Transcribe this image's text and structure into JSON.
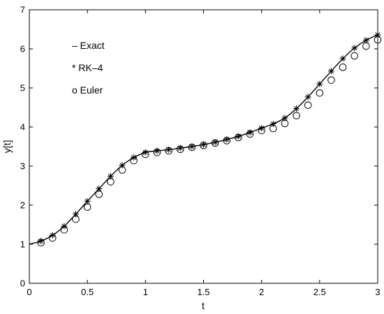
{
  "chart_data": {
    "type": "line",
    "title": "",
    "xlabel": "t",
    "ylabel": "y[t]",
    "xlim": [
      0,
      3
    ],
    "ylim": [
      0,
      7
    ],
    "xticks": [
      0,
      0.5,
      1,
      1.5,
      2,
      2.5,
      3
    ],
    "xtick_labels": [
      "0",
      "0.5",
      "1",
      "1.5",
      "2",
      "2.5",
      "3"
    ],
    "yticks": [
      0,
      1,
      2,
      3,
      4,
      5,
      6,
      7
    ],
    "ytick_labels": [
      "0",
      "1",
      "2",
      "3",
      "4",
      "5",
      "6",
      "7"
    ],
    "grid": false,
    "legend_position": "top-left",
    "legend_entries": [
      "– Exact",
      "* RK–4",
      "o Euler"
    ],
    "series": [
      {
        "name": "Exact",
        "style": "line",
        "color": "#000000",
        "x": [
          0,
          0.1,
          0.2,
          0.3,
          0.4,
          0.5,
          0.6,
          0.7,
          0.8,
          0.9,
          1.0,
          1.1,
          1.2,
          1.3,
          1.4,
          1.5,
          1.6,
          1.7,
          1.8,
          1.9,
          2.0,
          2.1,
          2.2,
          2.3,
          2.4,
          2.5,
          2.6,
          2.7,
          2.8,
          2.9,
          3.0
        ],
        "y": [
          1.0,
          1.08,
          1.23,
          1.46,
          1.77,
          2.1,
          2.42,
          2.74,
          3.02,
          3.22,
          3.35,
          3.39,
          3.42,
          3.46,
          3.5,
          3.55,
          3.61,
          3.68,
          3.76,
          3.86,
          3.97,
          4.08,
          4.23,
          4.47,
          4.77,
          5.1,
          5.43,
          5.75,
          6.02,
          6.22,
          6.36
        ]
      },
      {
        "name": "RK-4",
        "style": "markers",
        "marker": "*",
        "color": "#000000",
        "x": [
          0.1,
          0.2,
          0.3,
          0.4,
          0.5,
          0.6,
          0.7,
          0.8,
          0.9,
          1.0,
          1.1,
          1.2,
          1.3,
          1.4,
          1.5,
          1.6,
          1.7,
          1.8,
          1.9,
          2.0,
          2.1,
          2.2,
          2.3,
          2.4,
          2.5,
          2.6,
          2.7,
          2.8,
          2.9,
          3.0
        ],
        "y": [
          1.08,
          1.23,
          1.46,
          1.77,
          2.1,
          2.42,
          2.74,
          3.02,
          3.22,
          3.35,
          3.39,
          3.42,
          3.46,
          3.5,
          3.55,
          3.61,
          3.68,
          3.76,
          3.86,
          3.97,
          4.08,
          4.23,
          4.47,
          4.77,
          5.1,
          5.43,
          5.75,
          6.02,
          6.22,
          6.36
        ]
      },
      {
        "name": "Euler",
        "style": "markers",
        "marker": "o",
        "color": "#000000",
        "x": [
          0.1,
          0.2,
          0.3,
          0.4,
          0.5,
          0.6,
          0.7,
          0.8,
          0.9,
          1.0,
          1.1,
          1.2,
          1.3,
          1.4,
          1.5,
          1.6,
          1.7,
          1.8,
          1.9,
          2.0,
          2.1,
          2.2,
          2.3,
          2.4,
          2.5,
          2.6,
          2.7,
          2.8,
          2.9,
          3.0
        ],
        "y": [
          1.04,
          1.16,
          1.37,
          1.64,
          1.95,
          2.28,
          2.6,
          2.9,
          3.14,
          3.3,
          3.35,
          3.39,
          3.43,
          3.48,
          3.53,
          3.59,
          3.65,
          3.73,
          3.82,
          3.91,
          3.96,
          4.09,
          4.29,
          4.56,
          4.87,
          5.2,
          5.53,
          5.82,
          6.07,
          6.23
        ]
      }
    ]
  }
}
